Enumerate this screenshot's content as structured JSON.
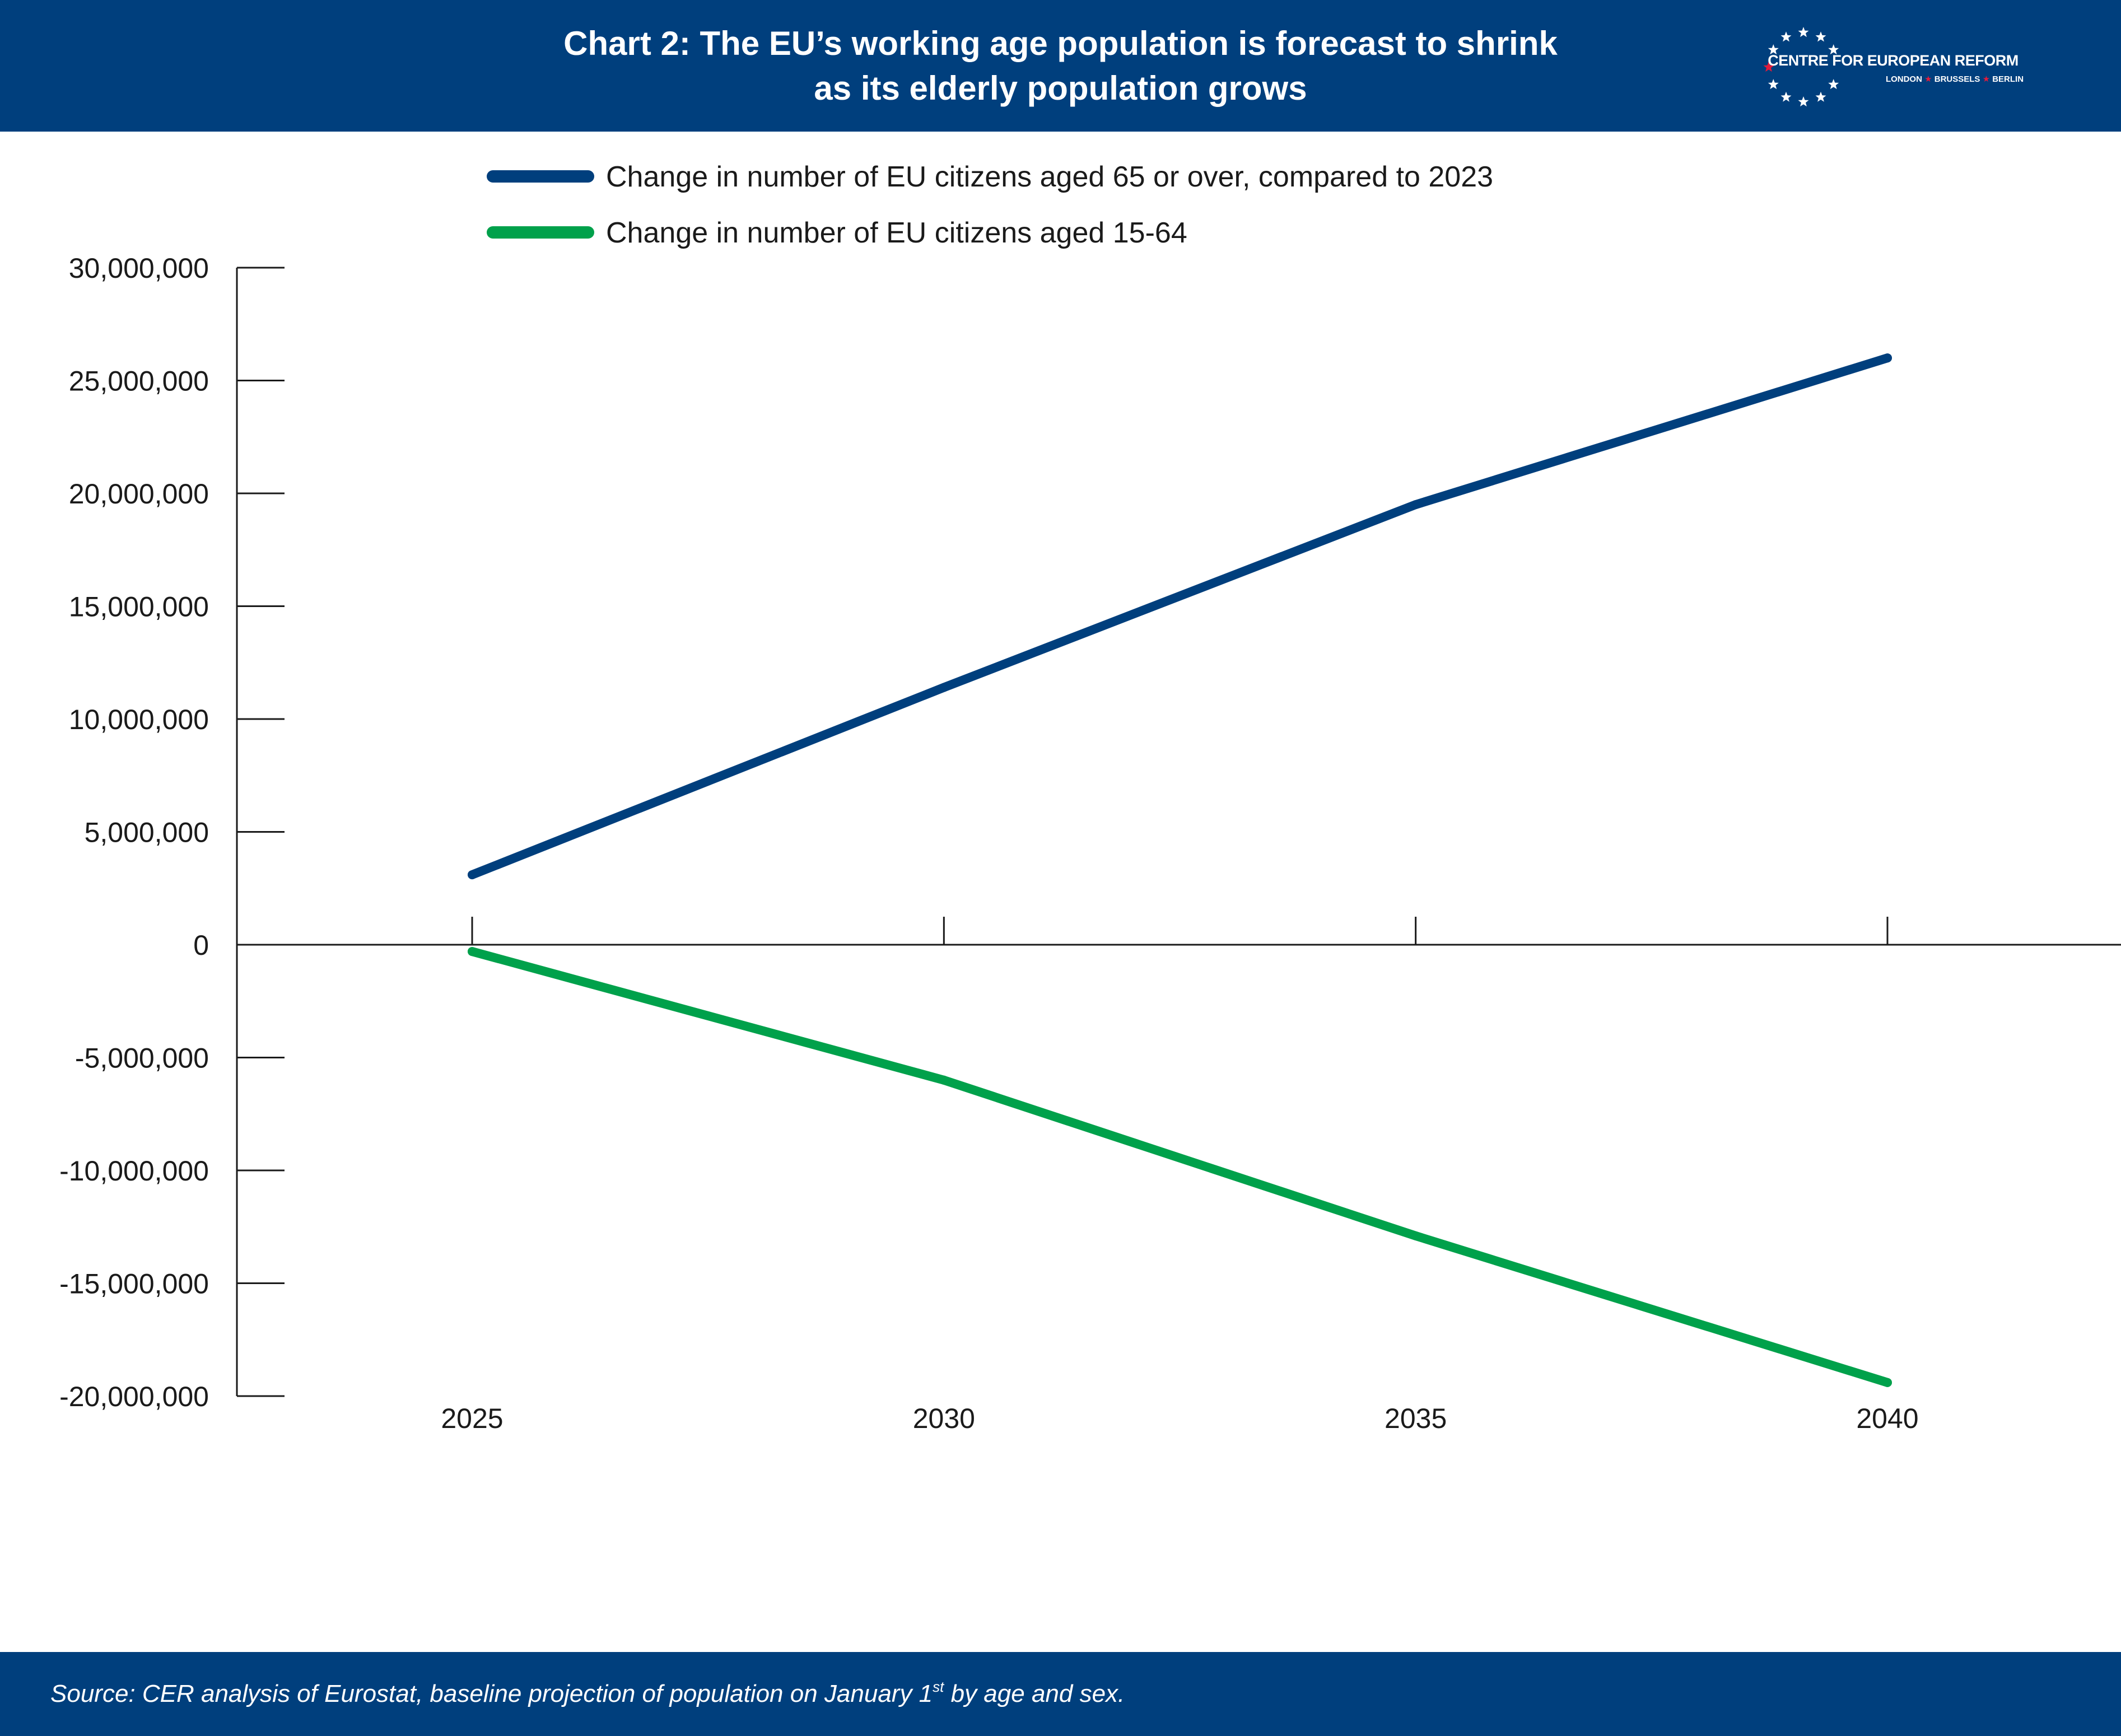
{
  "header": {
    "title_line1": "Chart 2: The EU’s working age population is forecast to shrink",
    "title_line2": "as its elderly population grows",
    "background": "#003f7d"
  },
  "logo": {
    "name": "CENTRE FOR EUROPEAN REFORM",
    "cities": [
      "LONDON",
      "BRUSSELS",
      "BERLIN"
    ],
    "star_color": "#ffffff",
    "accent_color": "#e31b3b",
    "icon": "star-ring-icon"
  },
  "chart_data": {
    "type": "line",
    "title": "Chart 2: The EU’s working age population is forecast to shrink as its elderly population grows",
    "xlabel": "",
    "ylabel": "",
    "x": [
      2025,
      2030,
      2035,
      2040
    ],
    "x_tick_labels": [
      "2025",
      "2030",
      "2035",
      "2040"
    ],
    "y_ticks": [
      30000000,
      25000000,
      20000000,
      15000000,
      10000000,
      5000000,
      0,
      -5000000,
      -10000000,
      -15000000,
      -20000000
    ],
    "y_tick_labels": [
      "30,000,000",
      "25,000,000",
      "20,000,000",
      "15,000,000",
      "10,000,000",
      "5,000,000",
      "0",
      "-5,000,000",
      "-10,000,000",
      "-15,000,000",
      "-20,000,000"
    ],
    "ylim": [
      -20000000,
      30000000
    ],
    "grid": false,
    "legend_position": "top",
    "series": [
      {
        "name": "Change in number of EU citizens aged 65 or over, compared to 2023",
        "color": "#003f7d",
        "values": [
          3100000,
          11400000,
          19500000,
          26000000
        ]
      },
      {
        "name": "Change in number of EU citizens aged 15-64",
        "color": "#00a14b",
        "values": [
          -300000,
          -6000000,
          -12900000,
          -19400000
        ]
      }
    ]
  },
  "footer": {
    "source_before": "Source: CER analysis of Eurostat, baseline projection of population on January 1",
    "source_sup": "st",
    "source_after": " by age and sex.",
    "background": "#003f7d"
  }
}
